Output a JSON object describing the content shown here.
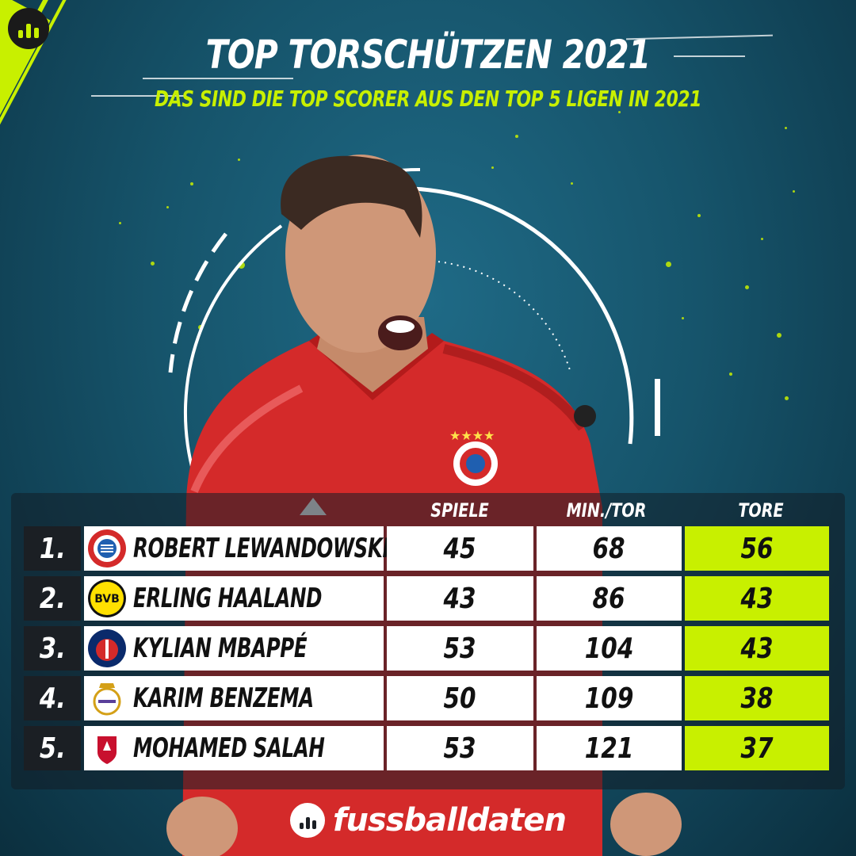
{
  "header": {
    "title": "TOP TORSCHÜTZEN 2021",
    "subtitle": "DAS SIND DIE TOP SCORER AUS DEN TOP 5 LIGEN IN 2021"
  },
  "table": {
    "headers": {
      "games": "SPIELE",
      "min_per_goal": "MIN./TOR",
      "goals": "TORE"
    },
    "rows": [
      {
        "rank": "1.",
        "name": "ROBERT LEWANDOWSKI",
        "crest": "fc-bayern-crest-icon",
        "games": "45",
        "min_per_goal": "68",
        "goals": "56"
      },
      {
        "rank": "2.",
        "name": "ERLING HAALAND",
        "crest": "bvb-crest-icon",
        "games": "43",
        "min_per_goal": "86",
        "goals": "43"
      },
      {
        "rank": "3.",
        "name": "KYLIAN MBAPPÉ",
        "crest": "psg-crest-icon",
        "games": "53",
        "min_per_goal": "104",
        "goals": "43"
      },
      {
        "rank": "4.",
        "name": "KARIM BENZEMA",
        "crest": "real-madrid-crest-icon",
        "games": "50",
        "min_per_goal": "109",
        "goals": "38"
      },
      {
        "rank": "5.",
        "name": "MOHAMED SALAH",
        "crest": "liverpool-crest-icon",
        "games": "53",
        "min_per_goal": "121",
        "goals": "37"
      }
    ]
  },
  "footer": {
    "brand": "fussballdaten"
  },
  "colors": {
    "accent": "#c8f000",
    "background": "#16546b",
    "rank_cell": "#1b1f24",
    "jersey": "#d42a2a"
  },
  "icons": {
    "top_left": "fussballdaten-logo-icon",
    "footer": "fussballdaten-logo-icon"
  }
}
